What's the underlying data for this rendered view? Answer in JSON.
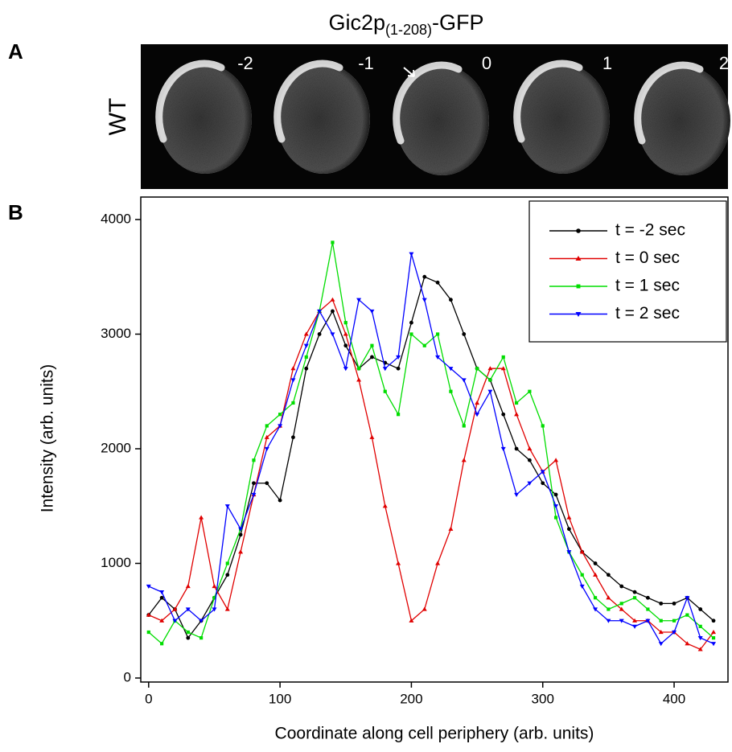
{
  "figure": {
    "title": {
      "main": "Gic2p",
      "sub": "(1-208)",
      "suffix": "-GFP"
    },
    "panel_a": {
      "label": "A",
      "row_label": "WT",
      "frames": [
        "-2",
        "-1",
        "0",
        "1",
        "2"
      ]
    },
    "panel_b": {
      "label": "B"
    }
  },
  "chart_data": {
    "type": "line",
    "x_label": "Coordinate along cell periphery (arb. units)",
    "y_label": "Intensity (arb. units)",
    "xlim": [
      -6,
      441
    ],
    "xticks": [
      0,
      100,
      200,
      300,
      400
    ],
    "ylim": [
      -35,
      4196
    ],
    "yticks": [
      0,
      1000,
      2000,
      3000,
      4000
    ],
    "legend": "upper right",
    "grid": false,
    "x": [
      0,
      10,
      20,
      30,
      40,
      50,
      60,
      70,
      80,
      90,
      100,
      110,
      120,
      130,
      140,
      150,
      160,
      170,
      180,
      190,
      200,
      210,
      220,
      230,
      240,
      250,
      260,
      270,
      280,
      290,
      300,
      310,
      320,
      330,
      340,
      350,
      360,
      370,
      380,
      390,
      400,
      410,
      420,
      430
    ],
    "series": [
      {
        "name": "t = -2 sec",
        "color": "#000000",
        "marker": "circle",
        "values": [
          550,
          700,
          600,
          350,
          500,
          700,
          900,
          1250,
          1700,
          1700,
          1550,
          2100,
          2700,
          3000,
          3200,
          2900,
          2700,
          2800,
          2750,
          2700,
          3100,
          3500,
          3450,
          3300,
          3000,
          2700,
          2600,
          2300,
          2000,
          1900,
          1700,
          1600,
          1300,
          1100,
          1000,
          900,
          800,
          750,
          700,
          650,
          650,
          700,
          600,
          500
        ]
      },
      {
        "name": "t = 0 sec",
        "color": "#e00000",
        "marker": "triangle-up",
        "values": [
          550,
          500,
          600,
          800,
          1400,
          800,
          600,
          1100,
          1600,
          2100,
          2200,
          2700,
          3000,
          3200,
          3300,
          3000,
          2600,
          2100,
          1500,
          1000,
          500,
          600,
          1000,
          1300,
          1900,
          2400,
          2700,
          2700,
          2300,
          2000,
          1800,
          1900,
          1400,
          1100,
          900,
          700,
          600,
          500,
          500,
          400,
          400,
          300,
          250,
          400
        ]
      },
      {
        "name": "t = 1 sec",
        "color": "#00dd00",
        "marker": "square",
        "values": [
          400,
          300,
          500,
          400,
          350,
          700,
          1000,
          1300,
          1900,
          2200,
          2300,
          2400,
          2800,
          3200,
          3800,
          3100,
          2700,
          2900,
          2500,
          2300,
          3000,
          2900,
          3000,
          2500,
          2200,
          2700,
          2600,
          2800,
          2400,
          2500,
          2200,
          1400,
          1100,
          900,
          700,
          600,
          650,
          700,
          600,
          500,
          500,
          550,
          450,
          350
        ]
      },
      {
        "name": "t = 2 sec",
        "color": "#0000ff",
        "marker": "triangle-down",
        "values": [
          800,
          750,
          500,
          600,
          500,
          600,
          1500,
          1300,
          1600,
          2000,
          2200,
          2600,
          2900,
          3200,
          3000,
          2700,
          3300,
          3200,
          2700,
          2800,
          3700,
          3300,
          2800,
          2700,
          2600,
          2300,
          2500,
          2000,
          1600,
          1700,
          1800,
          1500,
          1100,
          800,
          600,
          500,
          500,
          450,
          500,
          300,
          400,
          700,
          350,
          300
        ]
      }
    ]
  }
}
